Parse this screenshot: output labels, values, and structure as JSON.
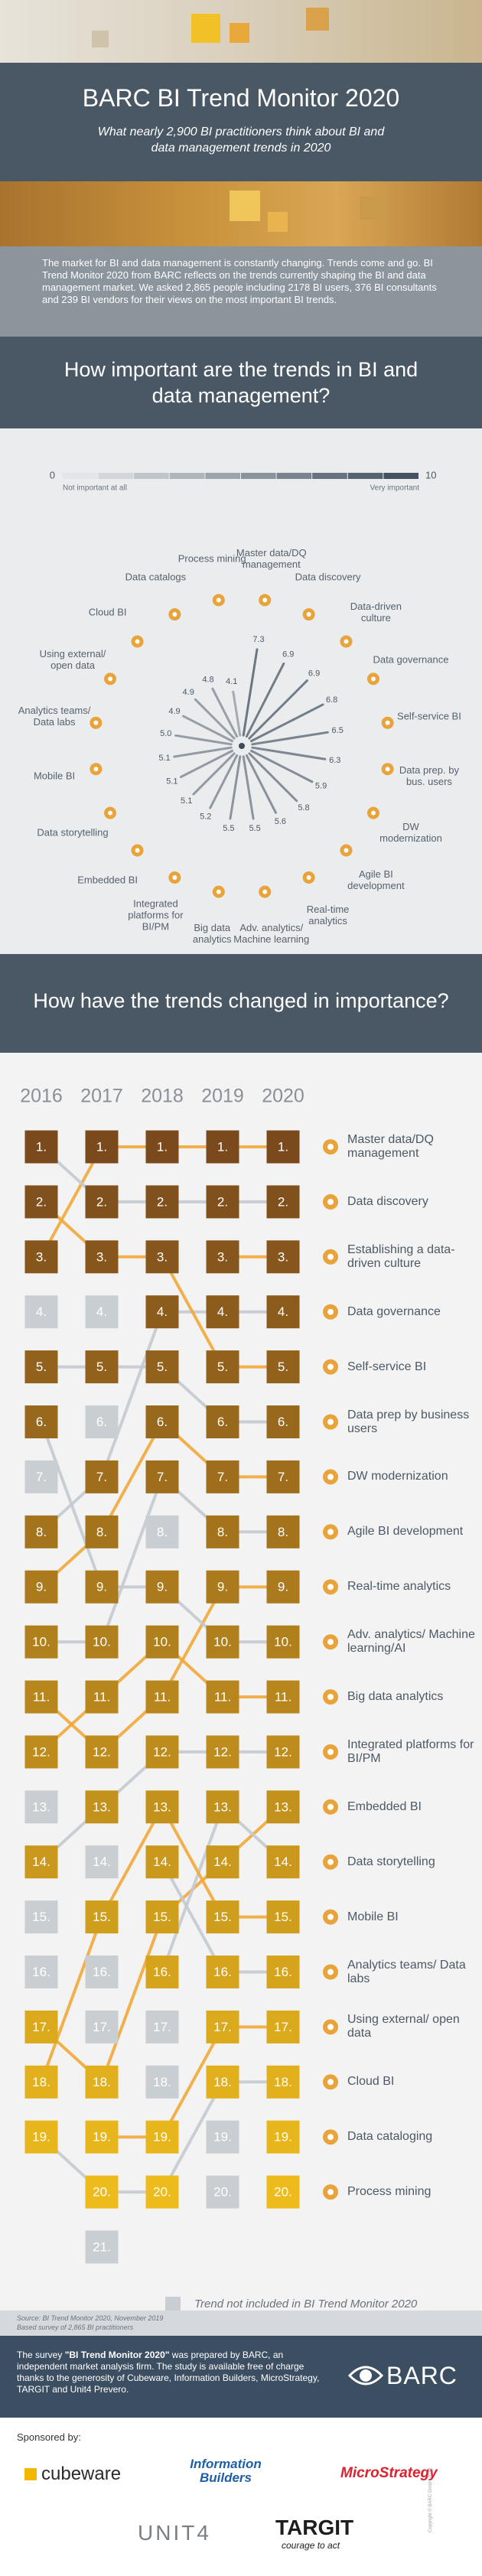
{
  "header": {
    "title": "BARC BI Trend Monitor 2020",
    "subtitle": "What nearly 2,900 BI practitioners think about BI and data management trends in 2020"
  },
  "intro": "The market for BI and data management is constantly changing. Trends come and go. BI Trend Monitor 2020 from BARC reflects on the trends currently shaping the BI and data management market. We asked 2,865 people including 2178 BI users, 376 BI consultants and 239 BI vendors for their views on the most important BI trends.",
  "chart_data": [
    {
      "type": "radial",
      "title": "How important are the trends in BI and data management?",
      "categories": [
        "Master data/DQ management",
        "Data discovery",
        "Data-driven culture",
        "Data governance",
        "Self-service BI",
        "Data prep. by bus. users",
        "DW modernization",
        "Agile BI development",
        "Real-time analytics",
        "Adv. analytics/ Machine learning",
        "Big data analytics",
        "Integrated platforms for BI/PM",
        "Embedded BI",
        "Data storytelling",
        "Mobile BI",
        "Analytics teams/ Data labs",
        "Using external/ open data",
        "Cloud BI",
        "Data catalogs",
        "Process mining"
      ],
      "values": [
        7.3,
        6.9,
        6.9,
        6.8,
        6.5,
        6.3,
        5.9,
        5.8,
        5.6,
        5.5,
        5.5,
        5.2,
        5.1,
        5.1,
        5.1,
        5.0,
        4.9,
        4.9,
        4.8,
        4.1
      ],
      "value_labels": [
        "7.3",
        "6.9",
        "6.9",
        "6.8",
        "6.5",
        "6.3",
        "5.9",
        "5.8",
        "5.6",
        "5.5",
        "5.5",
        "5.2",
        "5.1",
        "5.1",
        "5.1",
        "5.0",
        "4.9",
        "4.9",
        "4.8",
        "4.1"
      ],
      "clim": [
        0,
        10
      ],
      "clim_labels": [
        "Not important at all",
        "Very important"
      ],
      "colorscale": [
        "#eceef0",
        "#3c4a59"
      ]
    },
    {
      "type": "rank",
      "title": "How have the trends changed in importance?",
      "categories": [
        "2016",
        "2017",
        "2018",
        "2019",
        "2020"
      ],
      "ylim": [
        1,
        21
      ],
      "rank_colors": [
        "#7a4a1d",
        "#f3c21c"
      ],
      "series": [
        {
          "name": "Master data/DQ management",
          "color": "#f1a83a",
          "values": [
            3,
            1,
            1,
            1,
            1
          ],
          "value_labels": [
            "3.",
            "1.",
            "1.",
            "1.",
            "1."
          ]
        },
        {
          "name": "Data discovery",
          "color": "#c4cad0",
          "values": [
            1,
            2,
            2,
            2,
            2
          ],
          "value_labels": [
            "1.",
            "2.",
            "2.",
            "2.",
            "2."
          ]
        },
        {
          "name": "Establishing a data-driven culture",
          "color": "#f1a83a",
          "values": [
            null,
            null,
            null,
            3,
            3
          ],
          "value_labels": [
            null,
            null,
            null,
            "3.",
            "3."
          ]
        },
        {
          "name": "Data governance",
          "color": "#c4cad0",
          "values": [
            8,
            7,
            4,
            4,
            4
          ],
          "value_labels": [
            "8.",
            "7.",
            "4.",
            "4.",
            "4."
          ]
        },
        {
          "name": "Self-service BI",
          "color": "#f1a83a",
          "values": [
            2,
            3,
            3,
            5,
            5
          ],
          "value_labels": [
            "2.",
            "3.",
            "3.",
            "5.",
            "5."
          ]
        },
        {
          "name": "Data prep by business users",
          "color": "#c4cad0",
          "values": [
            5,
            5,
            5,
            6,
            6
          ],
          "value_labels": [
            "5.",
            "5.",
            "5.",
            "6.",
            "6."
          ]
        },
        {
          "name": "DW modernization",
          "color": "#f1a83a",
          "values": [
            9,
            8,
            6,
            7,
            7
          ],
          "value_labels": [
            "9.",
            "8.",
            "6.",
            "7.",
            "7."
          ]
        },
        {
          "name": "Agile BI development",
          "color": "#c4cad0",
          "values": [
            10,
            10,
            7,
            8,
            8
          ],
          "value_labels": [
            "10.",
            "10.",
            "7.",
            "8.",
            "8."
          ]
        },
        {
          "name": "Real-time analytics",
          "color": "#f1a83a",
          "values": [
            11,
            12,
            11,
            9,
            9
          ],
          "value_labels": [
            "11.",
            "12.",
            "11.",
            "9.",
            "9."
          ]
        },
        {
          "name": "Adv. analytics/ Machine learning/AI",
          "color": "#c4cad0",
          "values": [
            6,
            9,
            9,
            10,
            10
          ],
          "value_labels": [
            "6.",
            "9.",
            "9.",
            "10.",
            "10."
          ]
        },
        {
          "name": "Big data analytics",
          "color": "#f1a83a",
          "values": [
            12,
            11,
            10,
            11,
            11
          ],
          "value_labels": [
            "12.",
            "11.",
            "10.",
            "11.",
            "11."
          ]
        },
        {
          "name": "Integrated platforms for BI/PM",
          "color": "#c4cad0",
          "values": [
            14,
            13,
            12,
            12,
            12
          ],
          "value_labels": [
            "14.",
            "13.",
            "12.",
            "12.",
            "12."
          ]
        },
        {
          "name": "Embedded BI",
          "color": "#f1a83a",
          "values": [
            17,
            18,
            15,
            14,
            13
          ],
          "value_labels": [
            "17.",
            "18.",
            "15.",
            "14.",
            "13."
          ]
        },
        {
          "name": "Data storytelling",
          "color": "#c4cad0",
          "values": [
            null,
            null,
            16,
            13,
            14
          ],
          "value_labels": [
            null,
            null,
            "16.",
            "13.",
            "14."
          ]
        },
        {
          "name": "Mobile BI",
          "color": "#f1a83a",
          "values": [
            18,
            15,
            13,
            15,
            15
          ],
          "value_labels": [
            "18.",
            "15.",
            "13.",
            "15.",
            "15."
          ]
        },
        {
          "name": "Analytics teams/ Data labs",
          "color": "#c4cad0",
          "values": [
            null,
            null,
            14,
            16,
            16
          ],
          "value_labels": [
            null,
            null,
            "14.",
            "16.",
            "16."
          ]
        },
        {
          "name": "Using external/ open data",
          "color": "#f1a83a",
          "values": [
            null,
            19,
            19,
            17,
            17
          ],
          "value_labels": [
            null,
            "19.",
            "19.",
            "17.",
            "17."
          ]
        },
        {
          "name": "Cloud BI",
          "color": "#c4cad0",
          "values": [
            19,
            20,
            20,
            18,
            18
          ],
          "value_labels": [
            "19.",
            "20.",
            "20.",
            "18.",
            "18."
          ]
        },
        {
          "name": "Data cataloging",
          "color": "#f1a83a",
          "values": [
            null,
            null,
            null,
            null,
            19
          ],
          "value_labels": [
            null,
            null,
            null,
            null,
            "19."
          ]
        },
        {
          "name": "Process mining",
          "color": "#c4cad0",
          "values": [
            null,
            null,
            null,
            null,
            20
          ],
          "value_labels": [
            null,
            null,
            null,
            null,
            "20."
          ]
        }
      ],
      "excluded": [
        [
          {
            "value": 4,
            "label": "4."
          },
          {
            "value": 7,
            "label": "7."
          },
          {
            "value": 13,
            "label": "13."
          },
          {
            "value": 15,
            "label": "15."
          },
          {
            "value": 16,
            "label": "16."
          }
        ],
        [
          {
            "value": 4,
            "label": "4."
          },
          {
            "value": 6,
            "label": "6."
          },
          {
            "value": 14,
            "label": "14."
          },
          {
            "value": 16,
            "label": "16."
          },
          {
            "value": 17,
            "label": "17."
          },
          {
            "value": 21,
            "label": "21."
          }
        ],
        [
          {
            "value": 8,
            "label": "8."
          },
          {
            "value": 17,
            "label": "17."
          },
          {
            "value": 18,
            "label": "18."
          }
        ],
        [
          {
            "value": 19,
            "label": "19."
          },
          {
            "value": 20,
            "label": "20."
          }
        ],
        []
      ],
      "excluded_color": "#c9ced3",
      "legend": "Trend not included in BI Trend Monitor 2020"
    }
  ],
  "source": [
    "Source: BI Trend Monitor 2020, November 2019",
    "Based survey of 2,865 BI practitioners"
  ],
  "footer": {
    "before": "The survey ",
    "study": "\"BI Trend Monitor 2020\"",
    "after": " was prepared by BARC, an independent market analysis firm. The study is available free of charge thanks to the generosity of Cubeware, Information Builders, MicroStrategy, TARGIT and Unit4 Prevero.",
    "logo": "BARC",
    "copyright": "Copyright © BARC GmbH 2019"
  },
  "sponsors": {
    "label": "Sponsored by:",
    "names": [
      "cubeware",
      "Information Builders",
      "MicroStrategy",
      "UNIT4",
      "TARGIT"
    ],
    "tagline": "courage to act"
  }
}
